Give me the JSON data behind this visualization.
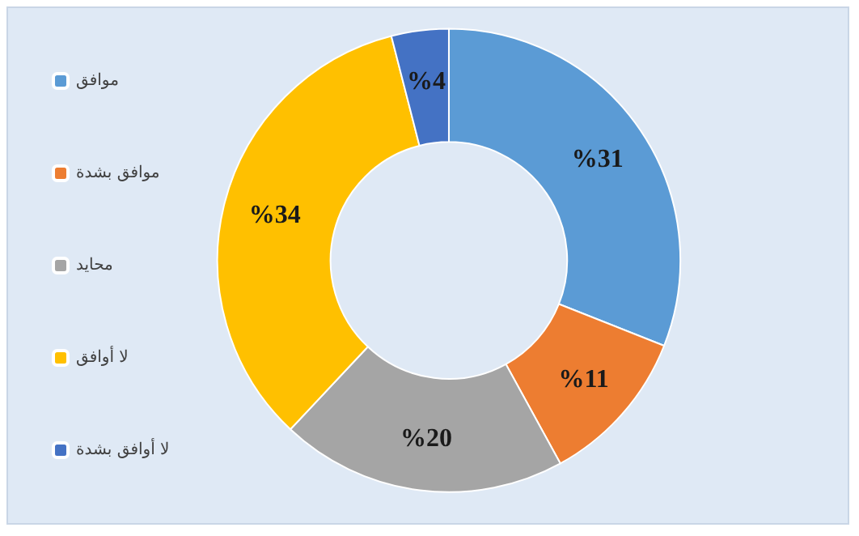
{
  "chart_data": {
    "type": "donut",
    "categories": [
      "موافق",
      "موافق بشدة",
      "محايد",
      "لا أوافق",
      "لا أوافق بشدة"
    ],
    "values": [
      31,
      11,
      20,
      34,
      4
    ],
    "colors": [
      "#5b9bd5",
      "#ed7d31",
      "#a5a5a5",
      "#ffc000",
      "#4472c4"
    ],
    "value_labels": [
      "%31",
      "%11",
      "%20",
      "%34",
      "%4"
    ],
    "legend": "left"
  }
}
